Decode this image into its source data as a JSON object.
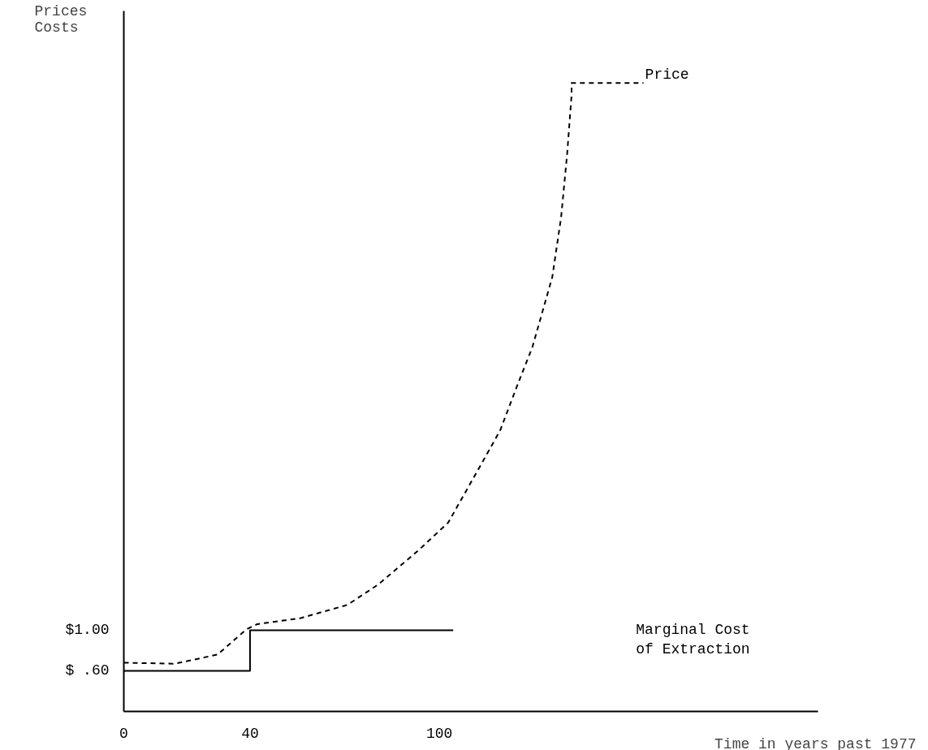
{
  "chart_data": {
    "type": "line",
    "xlabel": "Time in years past 1977",
    "ylabel": "Prices\nCosts",
    "xlim": [
      0,
      220
    ],
    "ylim": [
      0.2,
      7.1
    ],
    "xticks": [
      0,
      40,
      100
    ],
    "yticks": [
      {
        "value": 0.6,
        "label": "$ .60"
      },
      {
        "value": 1.0,
        "label": "$1.00"
      }
    ],
    "grid": false,
    "series": [
      {
        "name": "Price",
        "line_style": "dashed",
        "color": "#000000",
        "x": [
          0,
          16.1,
          29.7,
          38.9,
          42.3,
          56.1,
          70.9,
          80.6,
          93.5,
          102.8,
          113,
          119.3,
          124.8,
          129.5,
          135.8,
          138.6,
          140.5,
          141.9,
          141.9,
          164.7
        ],
        "values": [
          0.68,
          0.67,
          0.76,
          1.01,
          1.06,
          1.12,
          1.25,
          1.45,
          1.79,
          2.06,
          2.62,
          2.97,
          3.42,
          3.79,
          4.48,
          5.07,
          5.69,
          6.27,
          6.39,
          6.39
        ]
      },
      {
        "type": "step",
        "name": "Marginal Cost\nof Extraction",
        "line_style": "solid",
        "color": "#000000",
        "x": [
          0,
          40,
          104.4
        ],
        "values": [
          0.6,
          1.0,
          1.0
        ]
      }
    ]
  }
}
